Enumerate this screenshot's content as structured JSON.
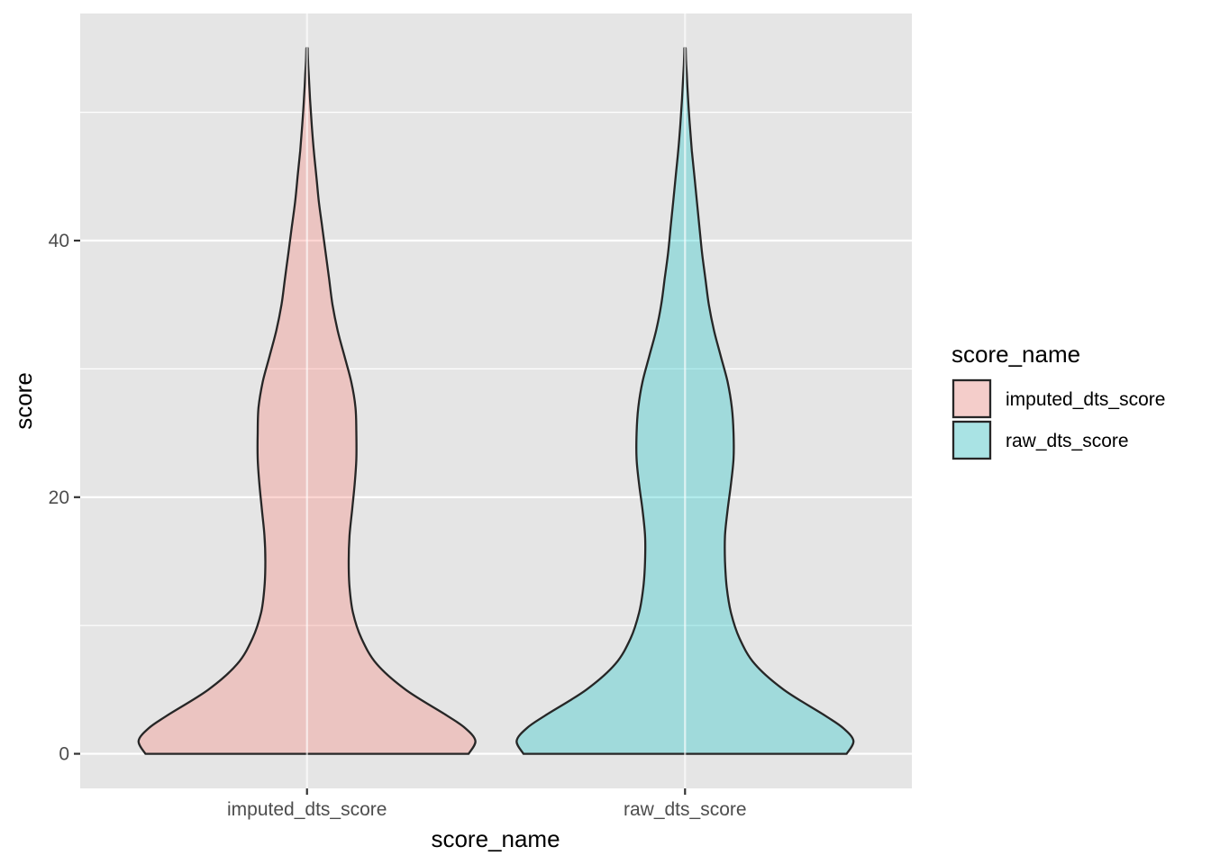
{
  "chart_data": {
    "type": "violin",
    "xlabel": "score_name",
    "ylabel": "score",
    "categories": [
      "imputed_dts_score",
      "raw_dts_score"
    ],
    "ylim": [
      -2.7,
      57.7
    ],
    "yticks": [
      0,
      20,
      40
    ],
    "grid": true,
    "legend": {
      "title": "score_name",
      "position": "right",
      "entries": [
        "imputed_dts_score",
        "raw_dts_score"
      ]
    },
    "colors": {
      "panel": "#e5e5e5",
      "grid": "#ffffff",
      "outline": "#262626",
      "tick": "#333333"
    },
    "series": [
      {
        "name": "imputed_dts_score",
        "color": "#f8766d",
        "fill_opacity": 0.3,
        "ymin": 0,
        "ymax": 55,
        "density": [
          [
            0,
            0.95
          ],
          [
            1,
            0.99
          ],
          [
            2,
            0.93
          ],
          [
            3,
            0.82
          ],
          [
            5,
            0.58
          ],
          [
            7,
            0.41
          ],
          [
            9,
            0.32
          ],
          [
            11,
            0.27
          ],
          [
            13,
            0.25
          ],
          [
            15,
            0.245
          ],
          [
            17,
            0.25
          ],
          [
            19,
            0.265
          ],
          [
            21,
            0.28
          ],
          [
            23,
            0.29
          ],
          [
            25,
            0.29
          ],
          [
            27,
            0.285
          ],
          [
            29,
            0.26
          ],
          [
            31,
            0.22
          ],
          [
            33,
            0.18
          ],
          [
            35,
            0.15
          ],
          [
            37,
            0.13
          ],
          [
            39,
            0.11
          ],
          [
            41,
            0.09
          ],
          [
            43,
            0.07
          ],
          [
            45,
            0.055
          ],
          [
            47,
            0.04
          ],
          [
            49,
            0.028
          ],
          [
            51,
            0.018
          ],
          [
            53,
            0.01
          ],
          [
            54,
            0.006
          ],
          [
            55,
            0.004
          ]
        ]
      },
      {
        "name": "raw_dts_score",
        "color": "#00bfc4",
        "fill_opacity": 0.3,
        "ymin": 0,
        "ymax": 55,
        "density": [
          [
            0,
            0.95
          ],
          [
            1,
            0.99
          ],
          [
            2,
            0.93
          ],
          [
            3,
            0.82
          ],
          [
            5,
            0.58
          ],
          [
            7,
            0.41
          ],
          [
            9,
            0.32
          ],
          [
            11,
            0.27
          ],
          [
            13,
            0.245
          ],
          [
            15,
            0.235
          ],
          [
            17,
            0.235
          ],
          [
            19,
            0.25
          ],
          [
            21,
            0.27
          ],
          [
            23,
            0.285
          ],
          [
            25,
            0.285
          ],
          [
            27,
            0.275
          ],
          [
            29,
            0.25
          ],
          [
            31,
            0.21
          ],
          [
            33,
            0.17
          ],
          [
            35,
            0.14
          ],
          [
            37,
            0.12
          ],
          [
            39,
            0.1
          ],
          [
            41,
            0.085
          ],
          [
            43,
            0.07
          ],
          [
            45,
            0.055
          ],
          [
            47,
            0.04
          ],
          [
            49,
            0.028
          ],
          [
            51,
            0.018
          ],
          [
            53,
            0.01
          ],
          [
            54,
            0.006
          ],
          [
            55,
            0.004
          ]
        ]
      }
    ]
  }
}
